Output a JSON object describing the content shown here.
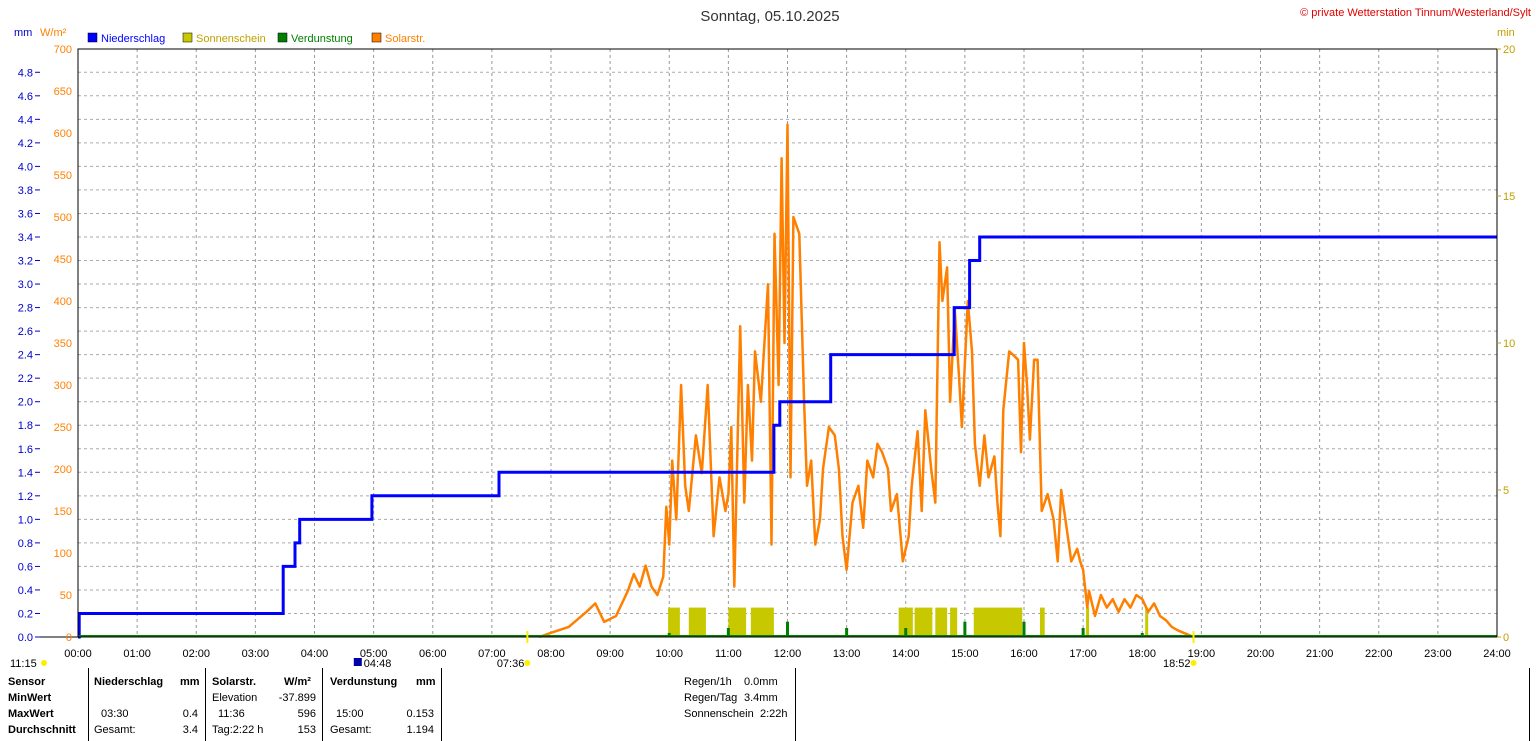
{
  "title": "Sonntag, 05.10.2025",
  "copyright": "© private Wetterstation Tinnum/Westerland/Sylt",
  "colors": {
    "precip": "#0000ff",
    "sun": "#c8c800",
    "evap": "#008000",
    "solar": "#ff8000",
    "suntext": "#c0a000"
  },
  "axis_units": {
    "mm": "mm",
    "wm2": "W/m²",
    "min": "min"
  },
  "legend": [
    {
      "label": "Niederschlag",
      "color": "#0000ff"
    },
    {
      "label": "Sonnenschein",
      "color": "#c8c800"
    },
    {
      "label": "Verdunstung",
      "color": "#008000"
    },
    {
      "label": "Solarstr.",
      "color": "#ff8000"
    }
  ],
  "markers": {
    "moonrise": "11:15",
    "sunrise": "07:36",
    "moonset": "04:48",
    "sunset": "18:52"
  },
  "chart_data": {
    "type": "line",
    "x_unit": "hour",
    "xlim": [
      0,
      24
    ],
    "x_ticks": [
      "00:00",
      "01:00",
      "02:00",
      "03:00",
      "04:00",
      "05:00",
      "06:00",
      "07:00",
      "08:00",
      "09:00",
      "10:00",
      "11:00",
      "12:00",
      "13:00",
      "14:00",
      "15:00",
      "16:00",
      "17:00",
      "18:00",
      "19:00",
      "20:00",
      "21:00",
      "22:00",
      "23:00",
      "24:00"
    ],
    "y_left_mm": {
      "range": [
        0,
        5
      ],
      "ticks": [
        "0.0",
        "0.2",
        "0.4",
        "0.6",
        "0.8",
        "1.0",
        "1.2",
        "1.4",
        "1.6",
        "1.8",
        "2.0",
        "2.2",
        "2.4",
        "2.6",
        "2.8",
        "3.0",
        "3.2",
        "3.4",
        "3.6",
        "3.8",
        "4.0",
        "4.2",
        "4.4",
        "4.6",
        "4.8"
      ]
    },
    "y_left_wm2": {
      "range": [
        0,
        700
      ],
      "ticks": [
        "0",
        "50",
        "100",
        "150",
        "200",
        "250",
        "300",
        "350",
        "400",
        "450",
        "500",
        "550",
        "600",
        "650",
        "700"
      ]
    },
    "y_right_min": {
      "range": [
        0,
        20
      ],
      "ticks": [
        "0",
        "5",
        "10",
        "15",
        "20"
      ]
    },
    "grid": true,
    "series": [
      {
        "name": "Niederschlag",
        "axis": "mm",
        "step": true,
        "points": [
          [
            0.0,
            0.0
          ],
          [
            0.02,
            0.2
          ],
          [
            3.47,
            0.6
          ],
          [
            3.67,
            0.8
          ],
          [
            3.75,
            1.0
          ],
          [
            4.97,
            1.2
          ],
          [
            7.12,
            1.4
          ],
          [
            11.77,
            1.8
          ],
          [
            11.87,
            2.0
          ],
          [
            12.73,
            2.4
          ],
          [
            14.82,
            2.8
          ],
          [
            15.08,
            3.2
          ],
          [
            15.25,
            3.4
          ],
          [
            24.0,
            3.4
          ]
        ]
      },
      {
        "name": "Solarstr.",
        "axis": "wm2",
        "points": [
          [
            7.8,
            0
          ],
          [
            8.0,
            5
          ],
          [
            8.3,
            12
          ],
          [
            8.6,
            30
          ],
          [
            8.75,
            40
          ],
          [
            8.9,
            18
          ],
          [
            9.1,
            25
          ],
          [
            9.3,
            55
          ],
          [
            9.4,
            75
          ],
          [
            9.5,
            60
          ],
          [
            9.6,
            85
          ],
          [
            9.7,
            60
          ],
          [
            9.8,
            50
          ],
          [
            9.9,
            72
          ],
          [
            9.95,
            155
          ],
          [
            10.0,
            110
          ],
          [
            10.05,
            210
          ],
          [
            10.12,
            140
          ],
          [
            10.2,
            300
          ],
          [
            10.27,
            180
          ],
          [
            10.33,
            150
          ],
          [
            10.45,
            240
          ],
          [
            10.55,
            195
          ],
          [
            10.65,
            300
          ],
          [
            10.75,
            120
          ],
          [
            10.85,
            190
          ],
          [
            10.95,
            150
          ],
          [
            11.0,
            170
          ],
          [
            11.05,
            250
          ],
          [
            11.1,
            60
          ],
          [
            11.2,
            370
          ],
          [
            11.27,
            160
          ],
          [
            11.33,
            300
          ],
          [
            11.4,
            210
          ],
          [
            11.45,
            340
          ],
          [
            11.55,
            280
          ],
          [
            11.6,
            340
          ],
          [
            11.67,
            420
          ],
          [
            11.73,
            110
          ],
          [
            11.78,
            480
          ],
          [
            11.85,
            300
          ],
          [
            11.9,
            570
          ],
          [
            11.95,
            350
          ],
          [
            12.0,
            610
          ],
          [
            12.05,
            190
          ],
          [
            12.1,
            500
          ],
          [
            12.2,
            480
          ],
          [
            12.28,
            280
          ],
          [
            12.33,
            180
          ],
          [
            12.4,
            210
          ],
          [
            12.47,
            110
          ],
          [
            12.55,
            140
          ],
          [
            12.6,
            200
          ],
          [
            12.7,
            250
          ],
          [
            12.8,
            240
          ],
          [
            12.87,
            200
          ],
          [
            12.93,
            120
          ],
          [
            13.0,
            80
          ],
          [
            13.1,
            160
          ],
          [
            13.2,
            180
          ],
          [
            13.28,
            130
          ],
          [
            13.35,
            210
          ],
          [
            13.45,
            190
          ],
          [
            13.52,
            230
          ],
          [
            13.6,
            220
          ],
          [
            13.7,
            200
          ],
          [
            13.75,
            150
          ],
          [
            13.85,
            170
          ],
          [
            13.95,
            90
          ],
          [
            14.05,
            120
          ],
          [
            14.1,
            180
          ],
          [
            14.2,
            245
          ],
          [
            14.27,
            150
          ],
          [
            14.33,
            270
          ],
          [
            14.43,
            200
          ],
          [
            14.5,
            160
          ],
          [
            14.57,
            470
          ],
          [
            14.62,
            400
          ],
          [
            14.7,
            440
          ],
          [
            14.75,
            280
          ],
          [
            14.83,
            390
          ],
          [
            14.9,
            310
          ],
          [
            14.95,
            250
          ],
          [
            15.05,
            400
          ],
          [
            15.12,
            340
          ],
          [
            15.17,
            230
          ],
          [
            15.25,
            180
          ],
          [
            15.33,
            240
          ],
          [
            15.4,
            190
          ],
          [
            15.5,
            215
          ],
          [
            15.55,
            160
          ],
          [
            15.6,
            120
          ],
          [
            15.65,
            270
          ],
          [
            15.75,
            340
          ],
          [
            15.83,
            335
          ],
          [
            15.9,
            330
          ],
          [
            15.95,
            220
          ],
          [
            16.0,
            350
          ],
          [
            16.05,
            300
          ],
          [
            16.1,
            235
          ],
          [
            16.17,
            330
          ],
          [
            16.23,
            330
          ],
          [
            16.3,
            150
          ],
          [
            16.4,
            170
          ],
          [
            16.5,
            140
          ],
          [
            16.57,
            90
          ],
          [
            16.63,
            175
          ],
          [
            16.7,
            140
          ],
          [
            16.8,
            90
          ],
          [
            16.9,
            105
          ],
          [
            16.95,
            90
          ],
          [
            17.0,
            80
          ],
          [
            17.07,
            35
          ],
          [
            17.1,
            55
          ],
          [
            17.2,
            25
          ],
          [
            17.3,
            50
          ],
          [
            17.4,
            35
          ],
          [
            17.5,
            45
          ],
          [
            17.6,
            30
          ],
          [
            17.7,
            45
          ],
          [
            17.8,
            35
          ],
          [
            17.9,
            50
          ],
          [
            18.0,
            45
          ],
          [
            18.1,
            30
          ],
          [
            18.2,
            40
          ],
          [
            18.3,
            25
          ],
          [
            18.4,
            20
          ],
          [
            18.5,
            12
          ],
          [
            18.6,
            8
          ],
          [
            18.7,
            5
          ],
          [
            18.8,
            2
          ],
          [
            18.87,
            0
          ]
        ]
      },
      {
        "name": "Sonnenschein",
        "axis": "min",
        "bars": [
          [
            9.98,
            10.18
          ],
          [
            10.33,
            10.62
          ],
          [
            11.0,
            11.3
          ],
          [
            11.38,
            11.77
          ],
          [
            13.88,
            14.12
          ],
          [
            14.15,
            14.45
          ],
          [
            14.5,
            14.7
          ],
          [
            14.75,
            14.87
          ],
          [
            15.15,
            15.97
          ],
          [
            16.27,
            16.35
          ],
          [
            17.05,
            17.1
          ],
          [
            18.05,
            18.1
          ]
        ],
        "bar_min": 1.0
      },
      {
        "name": "Verdunstung",
        "axis": "mm",
        "spikes": [
          [
            1.0,
            0.005
          ],
          [
            2.0,
            0.005
          ],
          [
            3.0,
            0.005
          ],
          [
            4.0,
            0.008
          ],
          [
            5.0,
            0.01
          ],
          [
            6.0,
            0.005
          ],
          [
            7.0,
            0.005
          ],
          [
            8.0,
            0.005
          ],
          [
            9.0,
            0.005
          ],
          [
            10.0,
            0.04
          ],
          [
            11.0,
            0.09
          ],
          [
            12.0,
            0.153
          ],
          [
            13.0,
            0.09
          ],
          [
            14.0,
            0.09
          ],
          [
            15.0,
            0.153
          ],
          [
            16.0,
            0.153
          ],
          [
            17.0,
            0.09
          ],
          [
            18.0,
            0.04
          ],
          [
            19.0,
            0.005
          ],
          [
            20.0,
            0.005
          ],
          [
            21.0,
            0.005
          ],
          [
            22.0,
            0.005
          ],
          [
            23.0,
            0.005
          ]
        ]
      }
    ]
  },
  "table": {
    "rows": [
      {
        "label": "Sensor",
        "col1": "Niederschlag",
        "col1u": "mm",
        "col2": "Solarstr.",
        "col2u": "W/m²",
        "col3": "Verdunstung",
        "col3u": "mm"
      },
      {
        "label": "MinWert",
        "col2a": "Elevation",
        "col2v": "-37.899"
      },
      {
        "label": "MaxWert",
        "col1a": "03:30",
        "col1v": "0.4",
        "col2a": "11:36",
        "col2v": "596",
        "col3a": "15:00",
        "col3v": "0.153"
      },
      {
        "label": "Durchschnitt",
        "col1a": "Gesamt:",
        "col1v": "3.4",
        "col2a": "Tag:2:22 h",
        "col2v": "153",
        "col3a": "Gesamt:",
        "col3v": "1.194"
      }
    ],
    "summary": [
      {
        "label": "Regen/1h",
        "value": "0.0mm"
      },
      {
        "label": "Regen/Tag",
        "value": "3.4mm"
      },
      {
        "label": "Sonnenschein",
        "value": "2:22h"
      }
    ]
  }
}
